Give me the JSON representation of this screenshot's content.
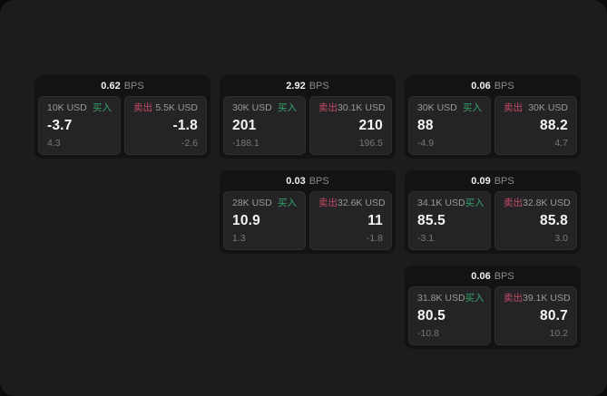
{
  "colors": {
    "page_bg": "#0b0b0c",
    "panel_bg": "#1c1c1e",
    "card_bg": "#131314",
    "tile_bg": "#242426",
    "tile_border": "#2f2f31",
    "buy": "#36a46b",
    "sell": "#c44a63",
    "label": "#9a9a9c",
    "muted": "#78787a",
    "value": "#f5f5f5"
  },
  "labels": {
    "bps_unit": "BPS",
    "buy": "买入",
    "sell": "卖出"
  },
  "layout": {
    "col_start": 38,
    "row_start": 83,
    "col_pitch": 204,
    "row_pitch": 105
  },
  "cards": [
    {
      "bps": "0.62",
      "row": 1,
      "col": 1,
      "buy": {
        "amount": "10K USD",
        "value": "-3.7",
        "delta": "4.3"
      },
      "sell": {
        "amount": "5.5K USD",
        "value": "-1.8",
        "delta": "-2.6"
      }
    },
    {
      "bps": "2.92",
      "row": 1,
      "col": 2,
      "buy": {
        "amount": "30K USD",
        "value": "201",
        "delta": "-188.1"
      },
      "sell": {
        "amount": "30.1K USD",
        "value": "210",
        "delta": "196.5"
      }
    },
    {
      "bps": "0.06",
      "row": 1,
      "col": 3,
      "buy": {
        "amount": "30K USD",
        "value": "88",
        "delta": "-4.9"
      },
      "sell": {
        "amount": "30K USD",
        "value": "88.2",
        "delta": "4.7"
      }
    },
    {
      "bps": "0.03",
      "row": 2,
      "col": 2,
      "buy": {
        "amount": "28K USD",
        "value": "10.9",
        "delta": "1.3"
      },
      "sell": {
        "amount": "32.6K USD",
        "value": "11",
        "delta": "-1.8"
      }
    },
    {
      "bps": "0.09",
      "row": 2,
      "col": 3,
      "buy": {
        "amount": "34.1K USD",
        "value": "85.5",
        "delta": "-3.1"
      },
      "sell": {
        "amount": "32.8K USD",
        "value": "85.8",
        "delta": "3.0"
      }
    },
    {
      "bps": "0.06",
      "row": 3,
      "col": 3,
      "buy": {
        "amount": "31.8K USD",
        "value": "80.5",
        "delta": "-10.8"
      },
      "sell": {
        "amount": "39.1K USD",
        "value": "80.7",
        "delta": "10.2"
      }
    }
  ]
}
